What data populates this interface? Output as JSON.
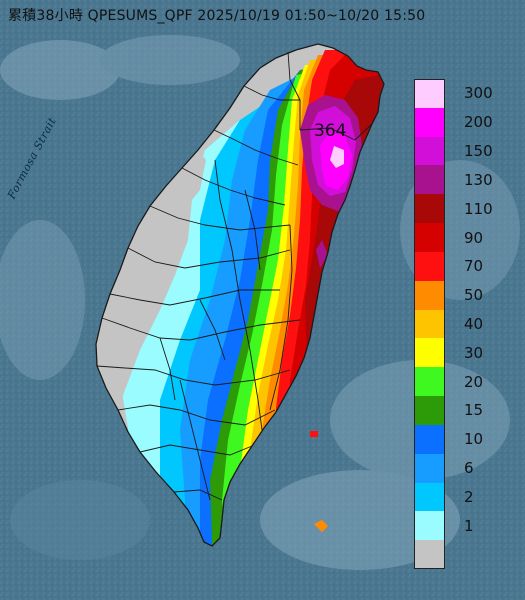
{
  "title": "累積38小時 QPESUMS_QPF 2025/10/19 01:50~10/20 15:50",
  "strait_label": "Formosa Strait",
  "max_value": "364",
  "legend": [
    {
      "label": "300",
      "color": "#ffccff"
    },
    {
      "label": "200",
      "color": "#ff00ff"
    },
    {
      "label": "150",
      "color": "#d10fd8"
    },
    {
      "label": "130",
      "color": "#a8128f"
    },
    {
      "label": "110",
      "color": "#a80808"
    },
    {
      "label": "90",
      "color": "#d50000"
    },
    {
      "label": "70",
      "color": "#ff1010"
    },
    {
      "label": "50",
      "color": "#ff8c00"
    },
    {
      "label": "40",
      "color": "#ffc400"
    },
    {
      "label": "30",
      "color": "#ffff00"
    },
    {
      "label": "20",
      "color": "#3ff81f"
    },
    {
      "label": "15",
      "color": "#2d9a08"
    },
    {
      "label": "10",
      "color": "#0b6fff"
    },
    {
      "label": "6",
      "color": "#169dff"
    },
    {
      "label": "2",
      "color": "#00c8ff"
    },
    {
      "label": "1",
      "color": "#9afcff"
    },
    {
      "label": "",
      "color": "#c4c4c4"
    }
  ],
  "colors": {
    "sea": "#4a7690",
    "no_rain": "#c4c4c4",
    "county_border": "#1a1a1a"
  }
}
